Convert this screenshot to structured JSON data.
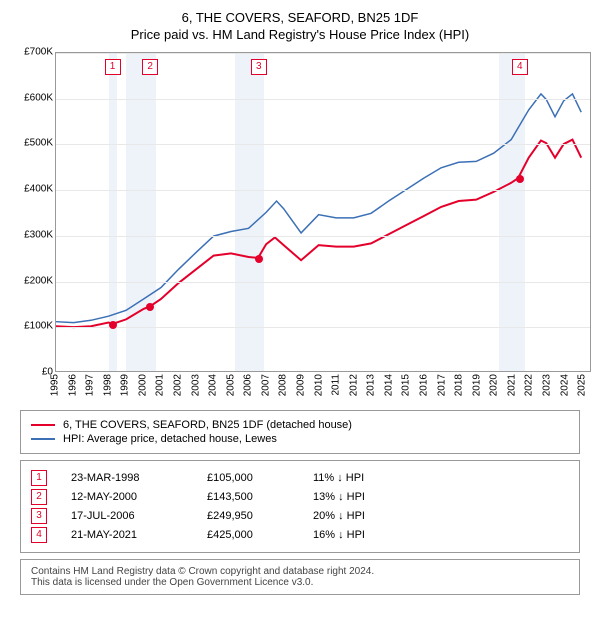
{
  "title": "6, THE COVERS, SEAFORD, BN25 1DF",
  "subtitle": "Price paid vs. HM Land Registry's House Price Index (HPI)",
  "chart": {
    "type": "line",
    "background_color": "#ffffff",
    "grid_color": "#e8e8e8",
    "axis_color": "#999999",
    "y": {
      "min": 0,
      "max": 700000,
      "step": 100000,
      "labels": [
        "£0",
        "£100K",
        "£200K",
        "£300K",
        "£400K",
        "£500K",
        "£600K",
        "£700K"
      ]
    },
    "x": {
      "min": 1995,
      "max": 2025.5,
      "ticks": [
        1995,
        1996,
        1997,
        1998,
        1999,
        2000,
        2001,
        2002,
        2003,
        2004,
        2005,
        2006,
        2007,
        2008,
        2009,
        2010,
        2011,
        2012,
        2013,
        2014,
        2015,
        2016,
        2017,
        2018,
        2019,
        2020,
        2021,
        2022,
        2023,
        2024,
        2025
      ]
    },
    "bands": [
      {
        "from": 1998.0,
        "to": 1998.45,
        "color": "#eef3f9"
      },
      {
        "from": 1999.0,
        "to": 2000.7,
        "color": "#eef3f9"
      },
      {
        "from": 2005.2,
        "to": 2006.85,
        "color": "#eef3f9"
      },
      {
        "from": 2020.2,
        "to": 2021.7,
        "color": "#eef3f9"
      }
    ],
    "series": [
      {
        "name": "6, THE COVERS, SEAFORD, BN25 1DF (detached house)",
        "color": "#e4002b",
        "line_width": 2,
        "points": [
          [
            1995.0,
            100000
          ],
          [
            1996.0,
            98000
          ],
          [
            1997.0,
            100000
          ],
          [
            1998.0,
            108000
          ],
          [
            1998.22,
            105000
          ],
          [
            1999.0,
            115000
          ],
          [
            2000.0,
            138000
          ],
          [
            2000.36,
            143500
          ],
          [
            2001.0,
            160000
          ],
          [
            2002.0,
            195000
          ],
          [
            2003.0,
            225000
          ],
          [
            2004.0,
            255000
          ],
          [
            2005.0,
            260000
          ],
          [
            2006.0,
            252000
          ],
          [
            2006.54,
            249950
          ],
          [
            2007.0,
            280000
          ],
          [
            2007.5,
            295000
          ],
          [
            2008.0,
            278000
          ],
          [
            2009.0,
            245000
          ],
          [
            2010.0,
            278000
          ],
          [
            2011.0,
            275000
          ],
          [
            2012.0,
            275000
          ],
          [
            2013.0,
            282000
          ],
          [
            2014.0,
            302000
          ],
          [
            2015.0,
            322000
          ],
          [
            2016.0,
            342000
          ],
          [
            2017.0,
            362000
          ],
          [
            2018.0,
            375000
          ],
          [
            2019.0,
            378000
          ],
          [
            2020.0,
            395000
          ],
          [
            2021.0,
            415000
          ],
          [
            2021.39,
            425000
          ],
          [
            2022.0,
            470000
          ],
          [
            2022.7,
            508000
          ],
          [
            2023.0,
            502000
          ],
          [
            2023.5,
            470000
          ],
          [
            2024.0,
            500000
          ],
          [
            2024.5,
            510000
          ],
          [
            2025.0,
            470000
          ]
        ]
      },
      {
        "name": "HPI: Average price, detached house, Lewes",
        "color": "#3b6fb6",
        "line_width": 1.5,
        "points": [
          [
            1995.0,
            110000
          ],
          [
            1996.0,
            108000
          ],
          [
            1997.0,
            113000
          ],
          [
            1998.0,
            122000
          ],
          [
            1999.0,
            135000
          ],
          [
            2000.0,
            160000
          ],
          [
            2001.0,
            185000
          ],
          [
            2002.0,
            225000
          ],
          [
            2003.0,
            262000
          ],
          [
            2004.0,
            298000
          ],
          [
            2005.0,
            308000
          ],
          [
            2006.0,
            315000
          ],
          [
            2007.0,
            350000
          ],
          [
            2007.6,
            375000
          ],
          [
            2008.0,
            358000
          ],
          [
            2009.0,
            305000
          ],
          [
            2010.0,
            345000
          ],
          [
            2011.0,
            338000
          ],
          [
            2012.0,
            338000
          ],
          [
            2013.0,
            348000
          ],
          [
            2014.0,
            375000
          ],
          [
            2015.0,
            400000
          ],
          [
            2016.0,
            425000
          ],
          [
            2017.0,
            448000
          ],
          [
            2018.0,
            460000
          ],
          [
            2019.0,
            462000
          ],
          [
            2020.0,
            480000
          ],
          [
            2021.0,
            510000
          ],
          [
            2022.0,
            575000
          ],
          [
            2022.7,
            610000
          ],
          [
            2023.0,
            598000
          ],
          [
            2023.5,
            560000
          ],
          [
            2024.0,
            595000
          ],
          [
            2024.5,
            610000
          ],
          [
            2025.0,
            570000
          ]
        ]
      }
    ],
    "sale_markers": [
      {
        "num": "1",
        "year": 1998.22,
        "price": 105000,
        "color": "#e4002b"
      },
      {
        "num": "2",
        "year": 2000.36,
        "price": 143500,
        "color": "#e4002b"
      },
      {
        "num": "3",
        "year": 2006.54,
        "price": 249950,
        "color": "#e4002b"
      },
      {
        "num": "4",
        "year": 2021.39,
        "price": 425000,
        "color": "#e4002b"
      }
    ]
  },
  "legend": [
    {
      "color": "#e4002b",
      "label": "6, THE COVERS, SEAFORD, BN25 1DF (detached house)"
    },
    {
      "color": "#3b6fb6",
      "label": "HPI: Average price, detached house, Lewes"
    }
  ],
  "sales": [
    {
      "num": "1",
      "color": "#e4002b",
      "date": "23-MAR-1998",
      "price": "£105,000",
      "diff": "11% ↓ HPI"
    },
    {
      "num": "2",
      "color": "#e4002b",
      "date": "12-MAY-2000",
      "price": "£143,500",
      "diff": "13% ↓ HPI"
    },
    {
      "num": "3",
      "color": "#e4002b",
      "date": "17-JUL-2006",
      "price": "£249,950",
      "diff": "20% ↓ HPI"
    },
    {
      "num": "4",
      "color": "#e4002b",
      "date": "21-MAY-2021",
      "price": "£425,000",
      "diff": "16% ↓ HPI"
    }
  ],
  "footnote": {
    "line1": "Contains HM Land Registry data © Crown copyright and database right 2024.",
    "line2": "This data is licensed under the Open Government Licence v3.0."
  }
}
